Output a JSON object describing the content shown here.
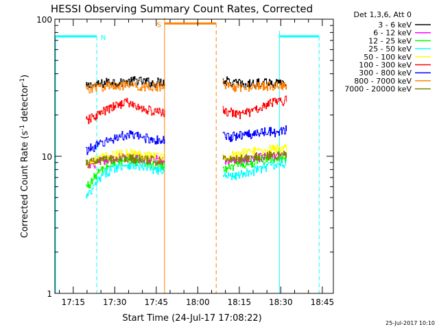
{
  "chart_data": {
    "type": "line",
    "title": "HESSI Observing Summary Count Rates, Corrected",
    "xlabel": "Start Time (24-Jul-17 17:08:22)",
    "ylabel": "Corrected Count Rate (s⁻¹ detector⁻¹)",
    "ylabel_main": "Corrected Count Rate (s",
    "ylabel_sup1": "-1",
    "ylabel_mid": " detector",
    "ylabel_sup2": "-1",
    "ylabel_end": ")",
    "yscale": "log",
    "ylim": [
      1,
      100
    ],
    "xlim": [
      "17:08:22",
      "18:49:00"
    ],
    "x_ticks": [
      "17:15",
      "17:30",
      "17:45",
      "18:00",
      "18:15",
      "18:30",
      "18:45"
    ],
    "y_ticks": [
      "1",
      "10",
      "100"
    ],
    "grid": false,
    "legend_title": "Det 1,3,6, Att 0",
    "legend_position": "right",
    "timestamp": "25-Jul-2017 10:10",
    "series": [
      {
        "name": "3 - 6 keV",
        "color": "#000000",
        "segments": [
          {
            "start": "17:19:30",
            "end": "17:48:00",
            "values": [
              32,
              33,
              33,
              34,
              35,
              35,
              34,
              35,
              35,
              36,
              35,
              35,
              34,
              35,
              35
            ]
          },
          {
            "start": "18:09:00",
            "end": "18:32:00",
            "values": [
              36,
              35,
              34,
              34,
              33,
              34,
              34,
              35,
              35,
              34,
              34,
              33
            ]
          }
        ]
      },
      {
        "name": "6 - 12 keV",
        "color": "#ff00ff",
        "segments": [
          {
            "start": "17:19:30",
            "end": "17:48:00",
            "values": [
              8.5,
              8.7,
              9,
              9.2,
              9.5,
              9.5,
              9.8,
              9.7,
              9.8,
              9.6,
              9.5,
              9.6,
              9.5,
              9.4,
              9.3
            ]
          },
          {
            "start": "18:09:00",
            "end": "18:32:00",
            "values": [
              9.3,
              9.2,
              9.4,
              9.3,
              9.5,
              9.6,
              9.8,
              9.7,
              10,
              9.9,
              10,
              10
            ]
          }
        ]
      },
      {
        "name": "12 - 25 keV",
        "color": "#00ff00",
        "segments": [
          {
            "start": "17:19:30",
            "end": "17:48:00",
            "values": [
              6,
              6.5,
              7.5,
              8,
              8.5,
              8.8,
              9,
              9.2,
              9.3,
              9.2,
              9,
              8.8,
              8.6,
              8.5,
              8.3
            ]
          },
          {
            "start": "18:09:00",
            "end": "18:32:00",
            "values": [
              8,
              8.2,
              8.5,
              8.6,
              8.8,
              9,
              9.2,
              9.4,
              9.5,
              9.5,
              9.6,
              9.7
            ]
          }
        ]
      },
      {
        "name": "25 - 50 keV",
        "color": "#00ffff",
        "segments": [
          {
            "start": "17:19:30",
            "end": "17:48:00",
            "values": [
              5,
              5.5,
              6.5,
              7.2,
              7.8,
              8.2,
              8.5,
              8.7,
              8.7,
              8.5,
              8.3,
              8.2,
              8,
              7.9,
              7.7
            ]
          },
          {
            "start": "18:09:00",
            "end": "18:32:00",
            "values": [
              7,
              7.2,
              7.3,
              7.4,
              7.6,
              7.8,
              8,
              8.3,
              8.5,
              8.6,
              8.8,
              9
            ]
          }
        ]
      },
      {
        "name": "50 - 100 keV",
        "color": "#ffff00",
        "segments": [
          {
            "start": "17:19:30",
            "end": "17:48:00",
            "values": [
              9,
              9.2,
              9.5,
              9.8,
              10,
              10.2,
              10.3,
              10.5,
              10.5,
              10.4,
              10.3,
              10.2,
              10.1,
              10,
              10
            ]
          },
          {
            "start": "18:09:00",
            "end": "18:32:00",
            "values": [
              10,
              10.2,
              10.3,
              10.5,
              10.6,
              10.8,
              11,
              11,
              11.2,
              11.3,
              11.5,
              11.5
            ]
          }
        ]
      },
      {
        "name": "100 - 300 keV",
        "color": "#ff0000",
        "segments": [
          {
            "start": "17:19:30",
            "end": "17:48:00",
            "values": [
              18,
              19,
              20,
              21,
              22,
              23,
              24,
              25,
              24,
              23,
              22,
              22,
              21,
              21,
              21
            ]
          },
          {
            "start": "18:09:00",
            "end": "18:32:00",
            "values": [
              22,
              21,
              21,
              20,
              21,
              21,
              22,
              23,
              24,
              25,
              25,
              26
            ]
          }
        ]
      },
      {
        "name": "300 - 800 keV",
        "color": "#0000ff",
        "segments": [
          {
            "start": "17:19:30",
            "end": "17:48:00",
            "values": [
              11,
              11.5,
              12,
              12.5,
              13,
              13.5,
              14,
              14.2,
              14.3,
              14,
              13.8,
              13.5,
              13.3,
              13,
              13
            ]
          },
          {
            "start": "18:09:00",
            "end": "18:32:00",
            "values": [
              14,
              13.8,
              14,
              14.2,
              14.3,
              14.5,
              14.7,
              15,
              15.2,
              15,
              15.3,
              15.5
            ]
          }
        ]
      },
      {
        "name": "800 - 7000 keV",
        "color": "#ff8000",
        "segments": [
          {
            "start": "17:19:30",
            "end": "17:48:00",
            "values": [
              31,
              31.5,
              32,
              32,
              32.5,
              33,
              33,
              32.5,
              33,
              32.5,
              32,
              32.5,
              32,
              32,
              32
            ]
          },
          {
            "start": "18:09:00",
            "end": "18:32:00",
            "values": [
              34,
              33,
              32,
              32,
              31.5,
              31.5,
              32,
              32.5,
              32.5,
              33,
              33,
              33
            ]
          }
        ]
      },
      {
        "name": "7000 - 20000 keV",
        "color": "#808000",
        "segments": [
          {
            "start": "17:19:30",
            "end": "17:48:00",
            "values": [
              8.8,
              9,
              9.2,
              9.3,
              9.5,
              9.6,
              9.7,
              9.7,
              9.6,
              9.5,
              9.5,
              9.4,
              9.3,
              9.2,
              9.2
            ]
          },
          {
            "start": "18:09:00",
            "end": "18:32:00",
            "values": [
              9.5,
              9.4,
              9.5,
              9.6,
              9.7,
              9.8,
              9.9,
              10,
              10.1,
              10.2,
              10.3,
              10.3
            ]
          }
        ]
      }
    ],
    "annotations": [
      {
        "label": "N",
        "color": "#00ffff",
        "start": "17:08:22",
        "end": "17:23:30",
        "end_style": "dashed",
        "level": 75
      },
      {
        "label": "",
        "color": "#00ffff",
        "start": "18:29:30",
        "end": "18:43:50",
        "end_style": "dashed",
        "level": 75
      },
      {
        "label": "S",
        "color": "#ff8000",
        "start": "17:48:00",
        "end": "18:06:40",
        "end_style": "dashed",
        "level": 93
      }
    ]
  }
}
